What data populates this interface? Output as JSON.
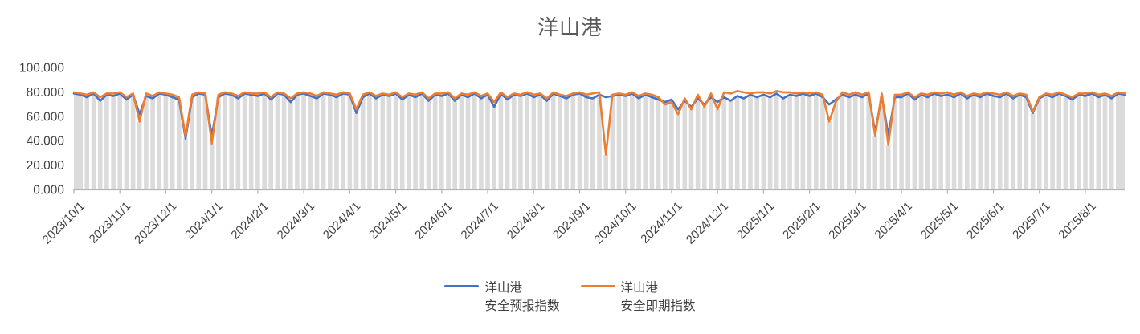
{
  "title": "洋山港",
  "legend": {
    "entries": [
      {
        "name_line1": "洋山港",
        "name_line2": "安全预报指数",
        "color": "#4472C4"
      },
      {
        "name_line1": "洋山港",
        "name_line2": "安全即期指数",
        "color": "#ED7D31"
      }
    ]
  },
  "chart_data": {
    "type": "line",
    "title": "洋山港",
    "xlabel": "",
    "ylabel": "",
    "ylim": [
      0,
      100
    ],
    "grid": false,
    "legend_position": "bottom",
    "y_ticks": [
      {
        "v": 100,
        "label": "100.000"
      },
      {
        "v": 80,
        "label": "80.000"
      },
      {
        "v": 60,
        "label": "60.000"
      },
      {
        "v": 40,
        "label": "40.000"
      },
      {
        "v": 20,
        "label": "20.000"
      },
      {
        "v": 0,
        "label": "0.000"
      }
    ],
    "x_tick_labels": [
      "2023/10/1",
      "2023/11/1",
      "2023/12/1",
      "2024/1/1",
      "2024/2/1",
      "2024/3/1",
      "2024/4/1",
      "2024/5/1",
      "2024/6/1",
      "2024/7/1",
      "2024/8/1",
      "2024/9/1",
      "2024/10/1",
      "2024/11/1",
      "2024/12/1",
      "2025/1/1",
      "2025/2/1",
      "2025/3/1",
      "2025/4/1",
      "2025/5/1",
      "2025/6/1",
      "2025/7/1",
      "2025/8/1"
    ],
    "x_start": "2023/10/1",
    "x_end": "2025/8/29",
    "points_per_month": 7,
    "background_bars": {
      "color": "#DBDBDB",
      "note": "dense light-gray daily columns behind the lines; height follows the lower of the two index series"
    },
    "axis_color": "#B3B3B3",
    "label_color": "#404040",
    "title_color": "#595959",
    "series": [
      {
        "name": "洋山港安全预报指数",
        "color": "#4472C4",
        "values": [
          79,
          78,
          76,
          79,
          73,
          78,
          77,
          79,
          74,
          78,
          62,
          77,
          75,
          79,
          78,
          76,
          74,
          42,
          76,
          79,
          78,
          44,
          76,
          79,
          78,
          75,
          79,
          78,
          77,
          79,
          74,
          79,
          78,
          72,
          78,
          79,
          77,
          75,
          79,
          78,
          76,
          79,
          78,
          63,
          76,
          79,
          75,
          78,
          77,
          79,
          74,
          78,
          76,
          79,
          73,
          78,
          77,
          79,
          73,
          78,
          76,
          79,
          75,
          78,
          68,
          79,
          74,
          78,
          77,
          79,
          76,
          78,
          73,
          79,
          77,
          75,
          78,
          79,
          76,
          75,
          78,
          76,
          77,
          78,
          77,
          79,
          75,
          78,
          76,
          74,
          72,
          74,
          66,
          73,
          68,
          75,
          70,
          76,
          72,
          76,
          73,
          77,
          75,
          78,
          76,
          78,
          76,
          79,
          75,
          78,
          77,
          79,
          77,
          79,
          76,
          70,
          74,
          78,
          76,
          78,
          76,
          79,
          47,
          77,
          45,
          76,
          76,
          79,
          74,
          78,
          76,
          79,
          77,
          78,
          76,
          79,
          75,
          78,
          76,
          79,
          77,
          76,
          79,
          75,
          78,
          76,
          63,
          75,
          78,
          76,
          79,
          77,
          74,
          78,
          77,
          79,
          76,
          78,
          75,
          79,
          78
        ]
      },
      {
        "name": "洋山港安全即期指数",
        "color": "#ED7D31",
        "values": [
          80,
          79,
          78,
          80,
          76,
          79,
          79,
          80,
          76,
          79,
          56,
          79,
          77,
          80,
          79,
          78,
          76,
          44,
          78,
          80,
          79,
          38,
          78,
          80,
          79,
          77,
          80,
          79,
          79,
          80,
          76,
          80,
          79,
          75,
          79,
          80,
          79,
          77,
          80,
          79,
          78,
          80,
          79,
          66,
          78,
          80,
          77,
          79,
          78,
          80,
          76,
          79,
          78,
          80,
          75,
          79,
          79,
          80,
          75,
          79,
          78,
          80,
          77,
          79,
          72,
          80,
          76,
          79,
          78,
          80,
          78,
          79,
          75,
          80,
          78,
          77,
          79,
          80,
          78,
          79,
          80,
          29,
          78,
          79,
          78,
          80,
          77,
          79,
          78,
          76,
          70,
          72,
          62,
          75,
          66,
          78,
          68,
          79,
          66,
          80,
          79,
          81,
          80,
          79,
          80,
          80,
          79,
          81,
          80,
          80,
          79,
          80,
          79,
          80,
          78,
          56,
          72,
          80,
          78,
          80,
          78,
          80,
          44,
          79,
          37,
          78,
          78,
          80,
          76,
          79,
          78,
          80,
          79,
          80,
          78,
          80,
          77,
          79,
          78,
          80,
          79,
          78,
          80,
          77,
          79,
          78,
          64,
          76,
          79,
          78,
          80,
          78,
          76,
          79,
          79,
          80,
          78,
          79,
          77,
          80,
          79
        ]
      }
    ]
  }
}
